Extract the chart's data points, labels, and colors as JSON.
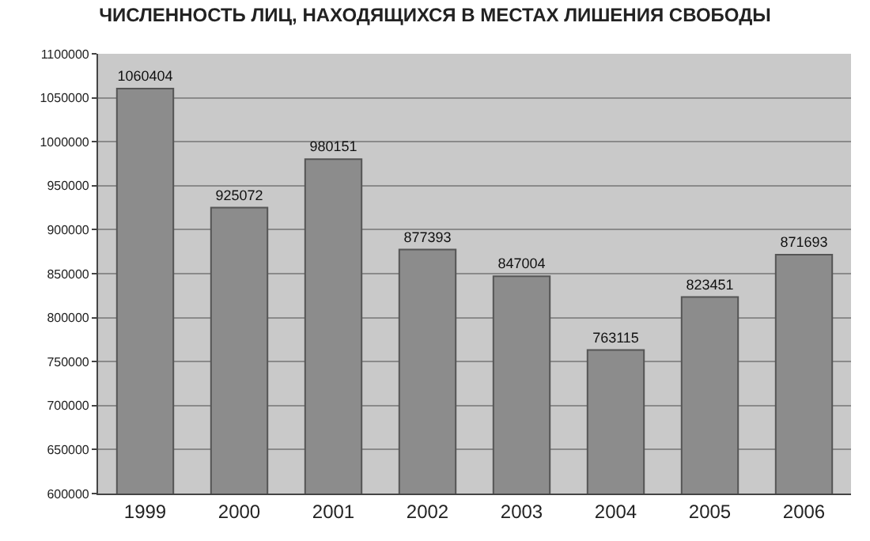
{
  "chart_data": {
    "type": "bar",
    "title": "ЧИСЛЕННОСТЬ ЛИЦ, НАХОДЯЩИХСЯ В МЕСТАХ ЛИШЕНИЯ СВОБОДЫ",
    "categories": [
      "1999",
      "2000",
      "2001",
      "2002",
      "2003",
      "2004",
      "2005",
      "2006"
    ],
    "values": [
      1060404,
      925072,
      980151,
      877393,
      847004,
      763115,
      823451,
      871693
    ],
    "color": "#8c8c8c",
    "ylim": [
      600000,
      1100000
    ],
    "yticks": [
      600000,
      650000,
      700000,
      750000,
      800000,
      850000,
      900000,
      950000,
      1000000,
      1050000,
      1100000
    ],
    "grid": "y",
    "data_labels": true
  }
}
